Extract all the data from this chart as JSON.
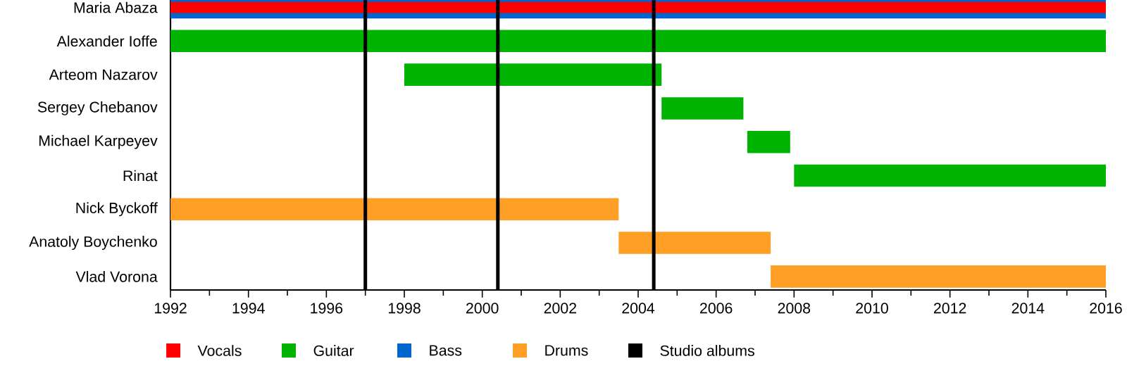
{
  "chart_data": {
    "type": "bar",
    "orientation": "horizontal",
    "categories": [
      "Maria Abaza",
      "Alexander Ioffe",
      "Arteom Nazarov",
      "Sergey Chebanov",
      "Michael Karpeyev",
      "Rinat",
      "Nick Byckoff",
      "Anatoly Boychenko",
      "Vlad Vorona"
    ],
    "series": [
      {
        "name": "Vocals",
        "color": "#ff0000",
        "base": [
          1992,
          null,
          null,
          null,
          null,
          null,
          null,
          null,
          null
        ],
        "values": [
          24,
          null,
          null,
          null,
          null,
          null,
          null,
          null,
          null
        ]
      },
      {
        "name": "Guitar",
        "color": "#00b300",
        "base": [
          null,
          1992,
          1998,
          2004.6,
          2006.8,
          2008,
          null,
          null,
          null
        ],
        "values": [
          null,
          24,
          6.6,
          2.1,
          1.1,
          8,
          null,
          null,
          null
        ]
      },
      {
        "name": "Bass",
        "color": "#0066cc",
        "base": [
          1992,
          null,
          null,
          null,
          null,
          null,
          null,
          null,
          null
        ],
        "values": [
          24,
          null,
          null,
          null,
          null,
          null,
          null,
          null,
          null
        ]
      },
      {
        "name": "Drums",
        "color": "#ff9f26",
        "base": [
          null,
          null,
          null,
          null,
          null,
          null,
          1992,
          2003.5,
          2007.4
        ],
        "values": [
          null,
          null,
          null,
          null,
          null,
          null,
          11.5,
          3.9,
          8.6
        ]
      }
    ],
    "xlim": [
      1992,
      2016
    ],
    "xticks": [
      1992,
      1994,
      1996,
      1998,
      2000,
      2002,
      2004,
      2006,
      2008,
      2010,
      2012,
      2014,
      2016
    ],
    "ref_lines": [
      {
        "axis": "x",
        "value": 1997.0,
        "color": "#000000",
        "label": "Studio albums"
      },
      {
        "axis": "x",
        "value": 2000.4,
        "color": "#000000"
      },
      {
        "axis": "x",
        "value": 2004.4,
        "color": "#000000"
      }
    ],
    "legend": "bottom"
  }
}
